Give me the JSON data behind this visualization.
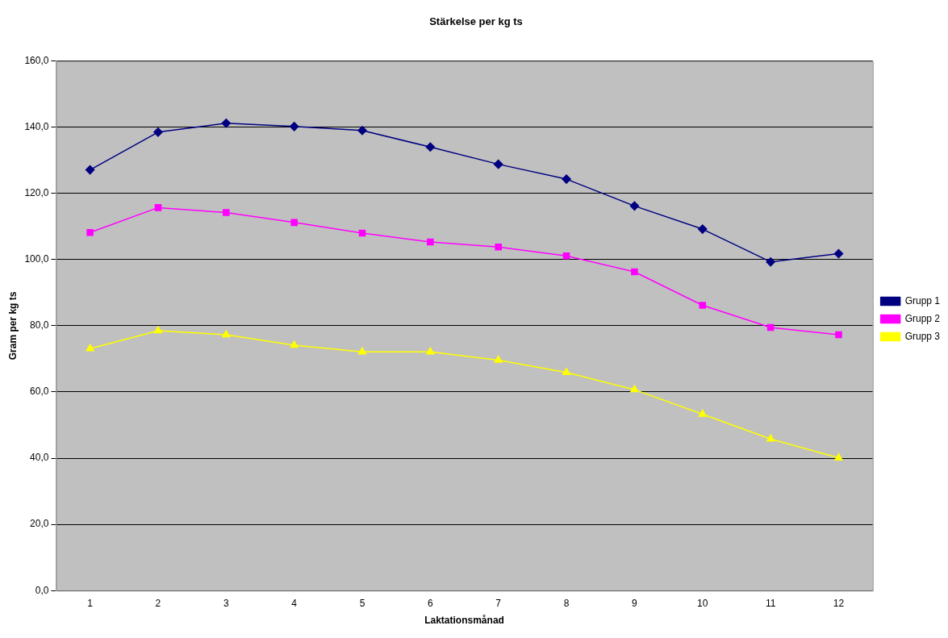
{
  "chart_data": {
    "type": "line",
    "title": "Stärkelse per kg ts",
    "xlabel": "Laktationsmånad",
    "ylabel": "Gram per kg ts",
    "categories": [
      "1",
      "2",
      "3",
      "4",
      "5",
      "6",
      "7",
      "8",
      "9",
      "10",
      "11",
      "12"
    ],
    "series": [
      {
        "name": "Grupp 1",
        "color": "#000080",
        "marker": "diamond",
        "values": [
          127.1,
          138.5,
          141.2,
          140.2,
          139.0,
          134.0,
          128.8,
          124.3,
          116.2,
          109.2,
          99.3,
          101.8
        ]
      },
      {
        "name": "Grupp 2",
        "color": "#ff00ff",
        "marker": "square",
        "values": [
          108.2,
          115.7,
          114.2,
          111.2,
          108.0,
          105.3,
          103.8,
          101.1,
          96.3,
          86.2,
          79.5,
          77.3
        ]
      },
      {
        "name": "Grupp 3",
        "color": "#ffff00",
        "marker": "triangle",
        "values": [
          73.1,
          78.5,
          77.3,
          74.1,
          72.1,
          72.1,
          69.6,
          65.9,
          60.7,
          53.3,
          45.8,
          40.1
        ]
      }
    ],
    "ylim": [
      0,
      160
    ],
    "yticks": [
      {
        "value": 0,
        "label": "0,0"
      },
      {
        "value": 20,
        "label": "20,0"
      },
      {
        "value": 40,
        "label": "40,0"
      },
      {
        "value": 60,
        "label": "60,0"
      },
      {
        "value": 80,
        "label": "80,0"
      },
      {
        "value": 100,
        "label": "100,0"
      },
      {
        "value": 120,
        "label": "120,0"
      },
      {
        "value": 140,
        "label": "140,0"
      },
      {
        "value": 160,
        "label": "160,0"
      }
    ],
    "grid": "y",
    "legend": "right",
    "line_style": "solid"
  }
}
